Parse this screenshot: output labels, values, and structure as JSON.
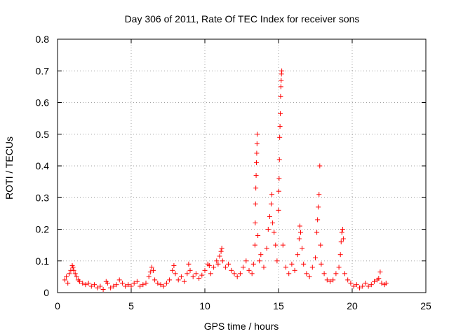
{
  "chart_data": {
    "type": "scatter",
    "title": "Day 306 of 2011, Rate Of TEC Index for receiver sons",
    "xlabel": "GPS time / hours",
    "ylabel": "ROTI / TECUs",
    "xlim": [
      0,
      25
    ],
    "ylim": [
      0,
      0.8
    ],
    "xticks": [
      0,
      5,
      10,
      15,
      20,
      25
    ],
    "yticks": [
      0,
      0.1,
      0.2,
      0.3,
      0.4,
      0.5,
      0.6,
      0.7,
      0.8
    ],
    "xtick_labels": [
      "0",
      "5",
      "10",
      "15",
      "20",
      "25"
    ],
    "ytick_labels": [
      "0",
      "0.1",
      "0.2",
      "0.3",
      "0.4",
      "0.5",
      "0.6",
      "0.7",
      "0.8"
    ],
    "grid": true,
    "marker": "+",
    "marker_color": "#ff0000",
    "series": [
      {
        "name": "ROTI",
        "points": [
          [
            0.5,
            0.04
          ],
          [
            0.6,
            0.05
          ],
          [
            0.7,
            0.03
          ],
          [
            0.8,
            0.06
          ],
          [
            0.9,
            0.07
          ],
          [
            1.0,
            0.085
          ],
          [
            1.05,
            0.08
          ],
          [
            1.1,
            0.07
          ],
          [
            1.2,
            0.06
          ],
          [
            1.3,
            0.05
          ],
          [
            1.4,
            0.04
          ],
          [
            1.5,
            0.035
          ],
          [
            1.7,
            0.03
          ],
          [
            1.9,
            0.025
          ],
          [
            2.1,
            0.03
          ],
          [
            2.3,
            0.02
          ],
          [
            2.5,
            0.025
          ],
          [
            2.7,
            0.015
          ],
          [
            2.9,
            0.02
          ],
          [
            3.1,
            0.01
          ],
          [
            3.3,
            0.035
          ],
          [
            3.4,
            0.03
          ],
          [
            3.6,
            0.015
          ],
          [
            3.8,
            0.02
          ],
          [
            4.0,
            0.025
          ],
          [
            4.2,
            0.04
          ],
          [
            4.4,
            0.03
          ],
          [
            4.6,
            0.02
          ],
          [
            4.8,
            0.025
          ],
          [
            5.0,
            0.02
          ],
          [
            5.2,
            0.03
          ],
          [
            5.4,
            0.035
          ],
          [
            5.6,
            0.02
          ],
          [
            5.8,
            0.025
          ],
          [
            6.0,
            0.03
          ],
          [
            6.2,
            0.05
          ],
          [
            6.3,
            0.065
          ],
          [
            6.4,
            0.08
          ],
          [
            6.5,
            0.07
          ],
          [
            6.6,
            0.04
          ],
          [
            6.8,
            0.03
          ],
          [
            7.0,
            0.025
          ],
          [
            7.2,
            0.02
          ],
          [
            7.4,
            0.03
          ],
          [
            7.6,
            0.04
          ],
          [
            7.8,
            0.07
          ],
          [
            7.9,
            0.085
          ],
          [
            8.0,
            0.06
          ],
          [
            8.2,
            0.04
          ],
          [
            8.4,
            0.05
          ],
          [
            8.6,
            0.035
          ],
          [
            8.8,
            0.06
          ],
          [
            8.9,
            0.09
          ],
          [
            9.0,
            0.07
          ],
          [
            9.2,
            0.05
          ],
          [
            9.4,
            0.06
          ],
          [
            9.6,
            0.045
          ],
          [
            9.8,
            0.055
          ],
          [
            10.0,
            0.07
          ],
          [
            10.2,
            0.09
          ],
          [
            10.3,
            0.085
          ],
          [
            10.4,
            0.06
          ],
          [
            10.6,
            0.08
          ],
          [
            10.8,
            0.1
          ],
          [
            10.9,
            0.09
          ],
          [
            11.0,
            0.115
          ],
          [
            11.1,
            0.13
          ],
          [
            11.15,
            0.14
          ],
          [
            11.2,
            0.1
          ],
          [
            11.4,
            0.08
          ],
          [
            11.6,
            0.09
          ],
          [
            11.8,
            0.07
          ],
          [
            12.0,
            0.06
          ],
          [
            12.2,
            0.05
          ],
          [
            12.4,
            0.06
          ],
          [
            12.6,
            0.08
          ],
          [
            12.8,
            0.1
          ],
          [
            13.0,
            0.07
          ],
          [
            13.2,
            0.06
          ],
          [
            13.3,
            0.09
          ],
          [
            13.4,
            0.15
          ],
          [
            13.42,
            0.22
          ],
          [
            13.44,
            0.28
          ],
          [
            13.46,
            0.33
          ],
          [
            13.48,
            0.37
          ],
          [
            13.5,
            0.41
          ],
          [
            13.52,
            0.44
          ],
          [
            13.54,
            0.47
          ],
          [
            13.56,
            0.5
          ],
          [
            13.6,
            0.18
          ],
          [
            13.7,
            0.1
          ],
          [
            13.8,
            0.12
          ],
          [
            14.0,
            0.08
          ],
          [
            14.2,
            0.14
          ],
          [
            14.3,
            0.2
          ],
          [
            14.4,
            0.24
          ],
          [
            14.5,
            0.28
          ],
          [
            14.55,
            0.31
          ],
          [
            14.6,
            0.22
          ],
          [
            14.7,
            0.19
          ],
          [
            14.8,
            0.15
          ],
          [
            14.9,
            0.1
          ],
          [
            15.0,
            0.26
          ],
          [
            15.02,
            0.32
          ],
          [
            15.04,
            0.36
          ],
          [
            15.06,
            0.42
          ],
          [
            15.08,
            0.49
          ],
          [
            15.1,
            0.525
          ],
          [
            15.12,
            0.565
          ],
          [
            15.14,
            0.62
          ],
          [
            15.16,
            0.65
          ],
          [
            15.18,
            0.67
          ],
          [
            15.2,
            0.69
          ],
          [
            15.22,
            0.7
          ],
          [
            15.3,
            0.15
          ],
          [
            15.5,
            0.08
          ],
          [
            15.7,
            0.06
          ],
          [
            15.9,
            0.09
          ],
          [
            16.1,
            0.07
          ],
          [
            16.3,
            0.12
          ],
          [
            16.4,
            0.17
          ],
          [
            16.45,
            0.21
          ],
          [
            16.5,
            0.19
          ],
          [
            16.6,
            0.14
          ],
          [
            16.7,
            0.09
          ],
          [
            16.9,
            0.06
          ],
          [
            17.1,
            0.05
          ],
          [
            17.3,
            0.08
          ],
          [
            17.5,
            0.11
          ],
          [
            17.6,
            0.19
          ],
          [
            17.65,
            0.23
          ],
          [
            17.7,
            0.27
          ],
          [
            17.75,
            0.31
          ],
          [
            17.8,
            0.4
          ],
          [
            17.85,
            0.15
          ],
          [
            17.9,
            0.09
          ],
          [
            18.1,
            0.06
          ],
          [
            18.3,
            0.04
          ],
          [
            18.5,
            0.035
          ],
          [
            18.7,
            0.04
          ],
          [
            18.9,
            0.06
          ],
          [
            19.1,
            0.08
          ],
          [
            19.2,
            0.12
          ],
          [
            19.25,
            0.16
          ],
          [
            19.3,
            0.19
          ],
          [
            19.35,
            0.2
          ],
          [
            19.4,
            0.17
          ],
          [
            19.5,
            0.06
          ],
          [
            19.7,
            0.04
          ],
          [
            19.9,
            0.03
          ],
          [
            20.1,
            0.02
          ],
          [
            20.3,
            0.025
          ],
          [
            20.5,
            0.015
          ],
          [
            20.7,
            0.02
          ],
          [
            20.9,
            0.03
          ],
          [
            21.1,
            0.02
          ],
          [
            21.3,
            0.025
          ],
          [
            21.5,
            0.035
          ],
          [
            21.7,
            0.04
          ],
          [
            21.8,
            0.045
          ],
          [
            21.9,
            0.065
          ],
          [
            22.0,
            0.03
          ],
          [
            22.2,
            0.025
          ],
          [
            22.3,
            0.03
          ]
        ]
      }
    ]
  }
}
